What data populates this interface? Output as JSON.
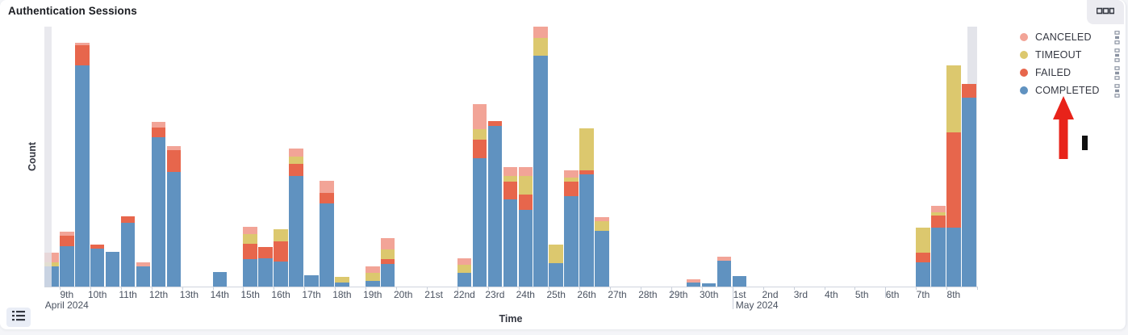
{
  "panel": {
    "title": "Authentication Sessions"
  },
  "panel_actions": {
    "options_icon": "boxes-horizontal-icon"
  },
  "legend": {
    "items": [
      {
        "label": "CANCELED",
        "color": "#F2A497"
      },
      {
        "label": "TIMEOUT",
        "color": "#DCC86E"
      },
      {
        "label": "FAILED",
        "color": "#E7664C"
      },
      {
        "label": "COMPLETED",
        "color": "#6092C0"
      }
    ]
  },
  "legend_toggle": {
    "icon": "list-icon"
  },
  "annotations": {
    "arrow": {
      "shape": "up-arrow",
      "color": "#E8231A",
      "points_to": "COMPLETED"
    },
    "cursor_mark": {
      "color": "#111111"
    }
  },
  "chart_data": {
    "type": "bar",
    "stacked": true,
    "title": "Authentication Sessions",
    "xlabel": "Time",
    "ylabel": "Count",
    "y_tick_labels": [],
    "ylim": [
      0,
      330
    ],
    "x_days": [
      "9th",
      "10th",
      "11th",
      "12th",
      "13th",
      "14th",
      "15th",
      "16th",
      "17th",
      "18th",
      "19th",
      "20th",
      "21st",
      "22nd",
      "23rd",
      "24th",
      "25th",
      "26th",
      "27th",
      "28th",
      "29th",
      "30th",
      "1st",
      "2nd",
      "3rd",
      "4th",
      "5th",
      "6th",
      "7th",
      "8th"
    ],
    "month_rows": [
      {
        "label": "April 2024",
        "day_index": 0,
        "align": "center"
      },
      {
        "label": "May 2024",
        "day_index": 22,
        "align": "left"
      }
    ],
    "bucket_hours": 12,
    "stack_order": [
      "COMPLETED",
      "FAILED",
      "TIMEOUT",
      "CANCELED"
    ],
    "colors": {
      "COMPLETED": "#6092C0",
      "FAILED": "#E7664C",
      "TIMEOUT": "#DCC86E",
      "CANCELED": "#F2A497",
      "PARTIAL": "#E3E4EA"
    },
    "week_start_day_indices": [
      6,
      13,
      20,
      27
    ],
    "month_boundary_day_index": 22,
    "bar_columns": [
      "slot_days_from_apr9",
      "COMPLETED",
      "FAILED",
      "TIMEOUT",
      "CANCELED"
    ],
    "bars": [
      [
        -0.5,
        25,
        0,
        5,
        12
      ],
      [
        0,
        50,
        13,
        0,
        5
      ],
      [
        0.5,
        274,
        25,
        0,
        3
      ],
      [
        1,
        47,
        5,
        0,
        0
      ],
      [
        1.5,
        43,
        0,
        0,
        0
      ],
      [
        2,
        79,
        8,
        0,
        0
      ],
      [
        2.5,
        25,
        0,
        0,
        5
      ],
      [
        3,
        185,
        12,
        0,
        7
      ],
      [
        3.5,
        142,
        27,
        0,
        5
      ],
      [
        5,
        18,
        0,
        0,
        0
      ],
      [
        6,
        34,
        19,
        12,
        9
      ],
      [
        6.5,
        35,
        14,
        0,
        0
      ],
      [
        7,
        31,
        25,
        15,
        0
      ],
      [
        7.5,
        137,
        15,
        9,
        10
      ],
      [
        8,
        14,
        0,
        0,
        0
      ],
      [
        8.5,
        103,
        13,
        0,
        15
      ],
      [
        9,
        5,
        0,
        7,
        0
      ],
      [
        10,
        7,
        0,
        10,
        8
      ],
      [
        10.5,
        28,
        6,
        12,
        14
      ],
      [
        13,
        17,
        0,
        10,
        8
      ],
      [
        13.5,
        159,
        23,
        13,
        31
      ],
      [
        14,
        199,
        6,
        0,
        0
      ],
      [
        14.5,
        108,
        22,
        7,
        11
      ],
      [
        15,
        95,
        19,
        23,
        11
      ],
      [
        15.5,
        286,
        0,
        22,
        14
      ],
      [
        16,
        29,
        0,
        23,
        0
      ],
      [
        16.5,
        112,
        18,
        5,
        9
      ],
      [
        17,
        139,
        5,
        52,
        0
      ],
      [
        17.5,
        69,
        0,
        12,
        5
      ],
      [
        20.5,
        5,
        0,
        0,
        4
      ],
      [
        21,
        4,
        0,
        0,
        0
      ],
      [
        21.5,
        32,
        0,
        0,
        5
      ],
      [
        22,
        13,
        0,
        0,
        0
      ],
      [
        28,
        30,
        12,
        31,
        0
      ],
      [
        28.5,
        73,
        15,
        4,
        8
      ],
      [
        29,
        73,
        118,
        83,
        0
      ],
      [
        29.5,
        234,
        17,
        0,
        0
      ]
    ],
    "partial_bucket_overlays": [
      {
        "edge": "left",
        "in_front_of_bars": true
      },
      {
        "edge": "right",
        "in_front_of_bars": false
      }
    ]
  }
}
